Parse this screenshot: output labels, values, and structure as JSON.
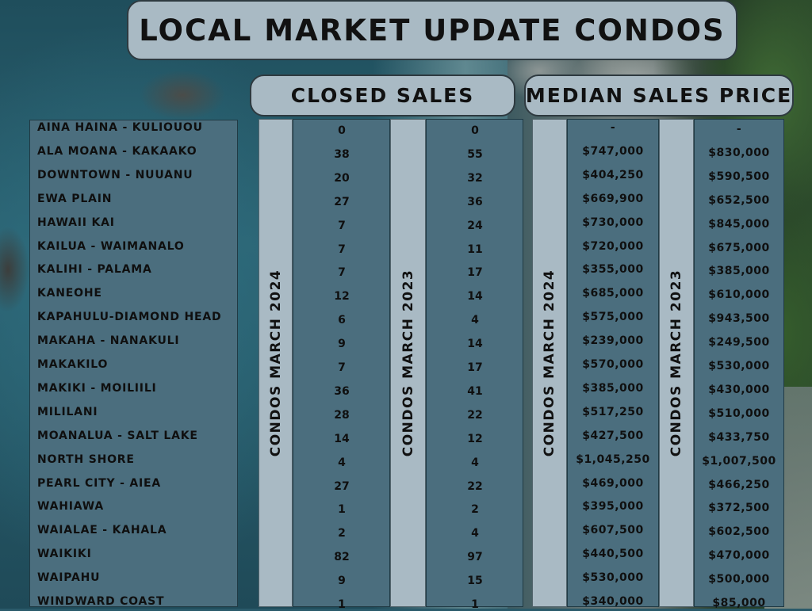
{
  "title": "LOCAL MARKET UPDATE CONDOS",
  "sections": {
    "closed_sales": "CLOSED SALES",
    "median_price": "MEDIAN SALES PRICE"
  },
  "column_labels": {
    "closed_2024": "CONDOS MARCH 2024",
    "closed_2023": "CONDOS MARCH 2023",
    "median_2024": "CONDOS MARCH 2024",
    "median_2023": "CONDOS MARCH 2023"
  },
  "rows": [
    {
      "area": "AINA HAINA - KULIOUOU",
      "closed_2024": "0",
      "closed_2023": "0",
      "median_2024": "-",
      "median_2023": "-"
    },
    {
      "area": "ALA MOANA - KAKAAKO",
      "closed_2024": "38",
      "closed_2023": "55",
      "median_2024": "$747,000",
      "median_2023": "$830,000"
    },
    {
      "area": "DOWNTOWN - NUUANU",
      "closed_2024": "20",
      "closed_2023": "32",
      "median_2024": "$404,250",
      "median_2023": "$590,500"
    },
    {
      "area": "EWA PLAIN",
      "closed_2024": "27",
      "closed_2023": "36",
      "median_2024": "$669,900",
      "median_2023": "$652,500"
    },
    {
      "area": "HAWAII KAI",
      "closed_2024": "7",
      "closed_2023": "24",
      "median_2024": "$730,000",
      "median_2023": "$845,000"
    },
    {
      "area": "KAILUA - WAIMANALO",
      "closed_2024": "7",
      "closed_2023": "11",
      "median_2024": "$720,000",
      "median_2023": "$675,000"
    },
    {
      "area": "KALIHI - PALAMA",
      "closed_2024": "7",
      "closed_2023": "17",
      "median_2024": "$355,000",
      "median_2023": "$385,000"
    },
    {
      "area": "KANEOHE",
      "closed_2024": "12",
      "closed_2023": "14",
      "median_2024": "$685,000",
      "median_2023": "$610,000"
    },
    {
      "area": "KAPAHULU-DIAMOND HEAD",
      "closed_2024": "6",
      "closed_2023": "4",
      "median_2024": "$575,000",
      "median_2023": "$943,500"
    },
    {
      "area": "MAKAHA - NANAKULI",
      "closed_2024": "9",
      "closed_2023": "14",
      "median_2024": "$239,000",
      "median_2023": "$249,500"
    },
    {
      "area": "MAKAKILO",
      "closed_2024": "7",
      "closed_2023": "17",
      "median_2024": "$570,000",
      "median_2023": "$530,000"
    },
    {
      "area": "MAKIKI - MOILIILI",
      "closed_2024": "36",
      "closed_2023": "41",
      "median_2024": "$385,000",
      "median_2023": "$430,000"
    },
    {
      "area": "MILILANI",
      "closed_2024": "28",
      "closed_2023": "22",
      "median_2024": "$517,250",
      "median_2023": "$510,000"
    },
    {
      "area": "MOANALUA - SALT LAKE",
      "closed_2024": "14",
      "closed_2023": "12",
      "median_2024": "$427,500",
      "median_2023": "$433,750"
    },
    {
      "area": "NORTH SHORE",
      "closed_2024": "4",
      "closed_2023": "4",
      "median_2024": "$1,045,250",
      "median_2023": "$1,007,500"
    },
    {
      "area": "PEARL CITY - AIEA",
      "closed_2024": "27",
      "closed_2023": "22",
      "median_2024": "$469,000",
      "median_2023": "$466,250"
    },
    {
      "area": "WAHIAWA",
      "closed_2024": "1",
      "closed_2023": "2",
      "median_2024": "$395,000",
      "median_2023": "$372,500"
    },
    {
      "area": "WAIALAE - KAHALA",
      "closed_2024": "2",
      "closed_2023": "4",
      "median_2024": "$607,500",
      "median_2023": "$602,500"
    },
    {
      "area": "WAIKIKI",
      "closed_2024": "82",
      "closed_2023": "97",
      "median_2024": "$440,500",
      "median_2023": "$470,000"
    },
    {
      "area": "WAIPAHU",
      "closed_2024": "9",
      "closed_2023": "15",
      "median_2024": "$530,000",
      "median_2023": "$500,000"
    },
    {
      "area": "WINDWARD COAST",
      "closed_2024": "1",
      "closed_2023": "1",
      "median_2024": "$340,000",
      "median_2023": "$85,000"
    }
  ]
}
